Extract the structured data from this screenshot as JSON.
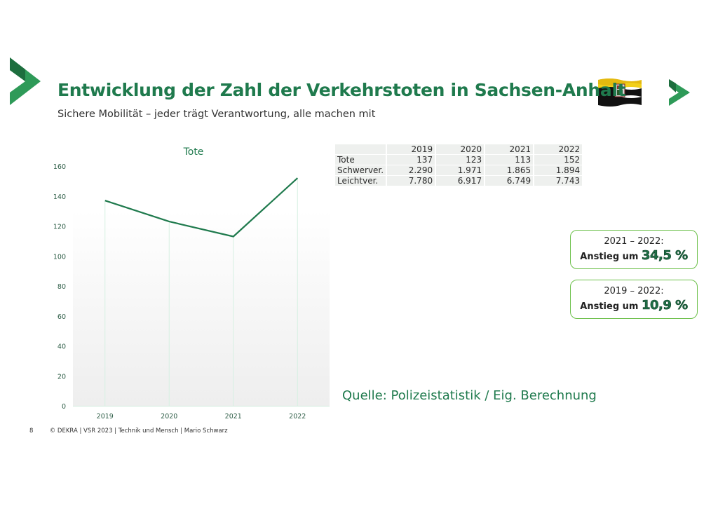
{
  "header": {
    "title": "Entwicklung der Zahl der Verkehrstoten in Sachsen-Anhalt",
    "subtitle": "Sichere Mobilität – jeder trägt Verantwortung, alle machen mit"
  },
  "colors": {
    "brand_green": "#1f7a4d",
    "accent_green": "#6cc04a",
    "line_green": "#1f7a4d"
  },
  "icons": {
    "left_logo": "dekra-arrow-logo",
    "right_logo": "dekra-arrow-logo-small",
    "flag": "sachsen-anhalt-flag"
  },
  "chart_data": {
    "type": "line",
    "title": "Tote",
    "categories": [
      "2019",
      "2020",
      "2021",
      "2022"
    ],
    "values": [
      137,
      123,
      113,
      152
    ],
    "ylim": [
      0,
      160
    ],
    "yticks": [
      0,
      20,
      40,
      60,
      80,
      100,
      120,
      140,
      160
    ],
    "xlabel": "",
    "ylabel": "",
    "grid": "vertical lines at categories",
    "legend": "none"
  },
  "table": {
    "header": [
      "2019",
      "2020",
      "2021",
      "2022"
    ],
    "rows": [
      {
        "label": "Tote",
        "values": [
          "137",
          "123",
          "113",
          "152"
        ]
      },
      {
        "label": "Schwerver.",
        "values": [
          "2.290",
          "1.971",
          "1.865",
          "1.894"
        ]
      },
      {
        "label": "Leichtver.",
        "values": [
          "7.780",
          "6.917",
          "6.749",
          "7.743"
        ]
      }
    ]
  },
  "cards": [
    {
      "period": "2021 – 2022:",
      "text": "Anstieg um",
      "value": "34,5 %"
    },
    {
      "period": "2019 – 2022:",
      "text": "Anstieg um",
      "value": "10,9 %"
    }
  ],
  "source": "Quelle: Polizeistatistik / Eig. Berechnung",
  "footer": {
    "page": "8",
    "text": "© DEKRA | VSR 2023 | Technik und Mensch | Mario Schwarz"
  }
}
